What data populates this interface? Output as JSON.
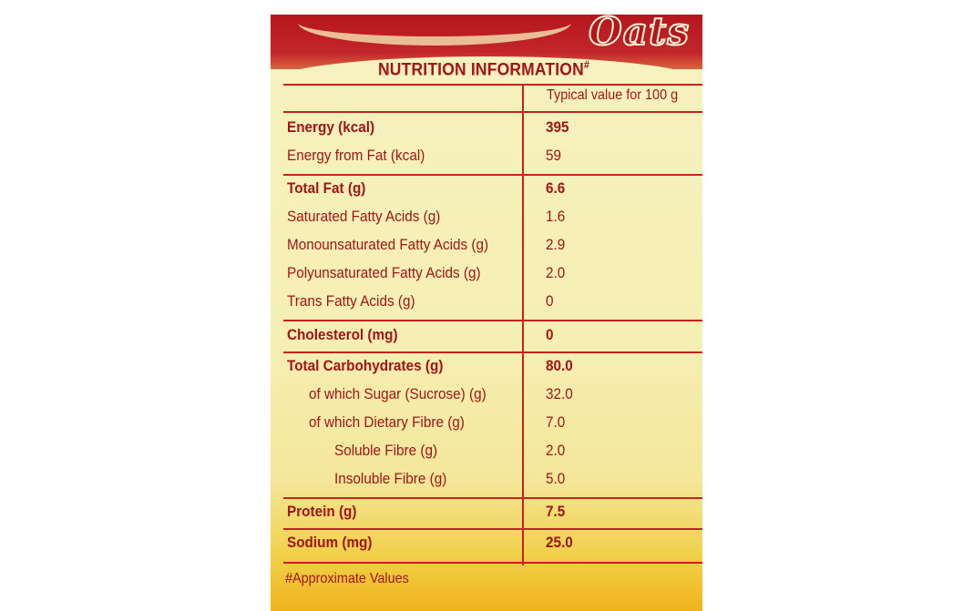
{
  "brand": {
    "product_text": "Oats"
  },
  "panel": {
    "heading": "NUTRITION INFORMATION",
    "heading_mark": "#",
    "column_header": "Typical value for 100 g",
    "rows": [
      {
        "label": "Energy (kcal)",
        "value": "395"
      },
      {
        "label": "Energy from Fat (kcal)",
        "value": "59"
      },
      {
        "label": "Total Fat (g)",
        "value": "6.6"
      },
      {
        "label": "Saturated Fatty Acids (g)",
        "value": "1.6"
      },
      {
        "label": "Monounsaturated Fatty Acids (g)",
        "value": "2.9"
      },
      {
        "label": "Polyunsaturated Fatty Acids (g)",
        "value": "2.0"
      },
      {
        "label": "Trans Fatty Acids (g)",
        "value": "0"
      },
      {
        "label": "Cholesterol (mg)",
        "value": "0"
      },
      {
        "label": "Total Carbohydrates (g)",
        "value": "80.0"
      },
      {
        "label": "of which Sugar (Sucrose) (g)",
        "value": "32.0"
      },
      {
        "label": "of which Dietary Fibre (g)",
        "value": "7.0"
      },
      {
        "label": "Soluble Fibre (g)",
        "value": "2.0"
      },
      {
        "label": "Insoluble Fibre (g)",
        "value": "5.0"
      },
      {
        "label": "Protein (g)",
        "value": "7.5"
      },
      {
        "label": "Sodium (mg)",
        "value": "25.0"
      }
    ],
    "footnote": "#Approximate Values"
  },
  "colors": {
    "text": "#a41417",
    "rule": "#c8221f",
    "band": "#b4161c",
    "panel_bg": "#f7f2c0",
    "bottom_bg": "#efb41c"
  }
}
